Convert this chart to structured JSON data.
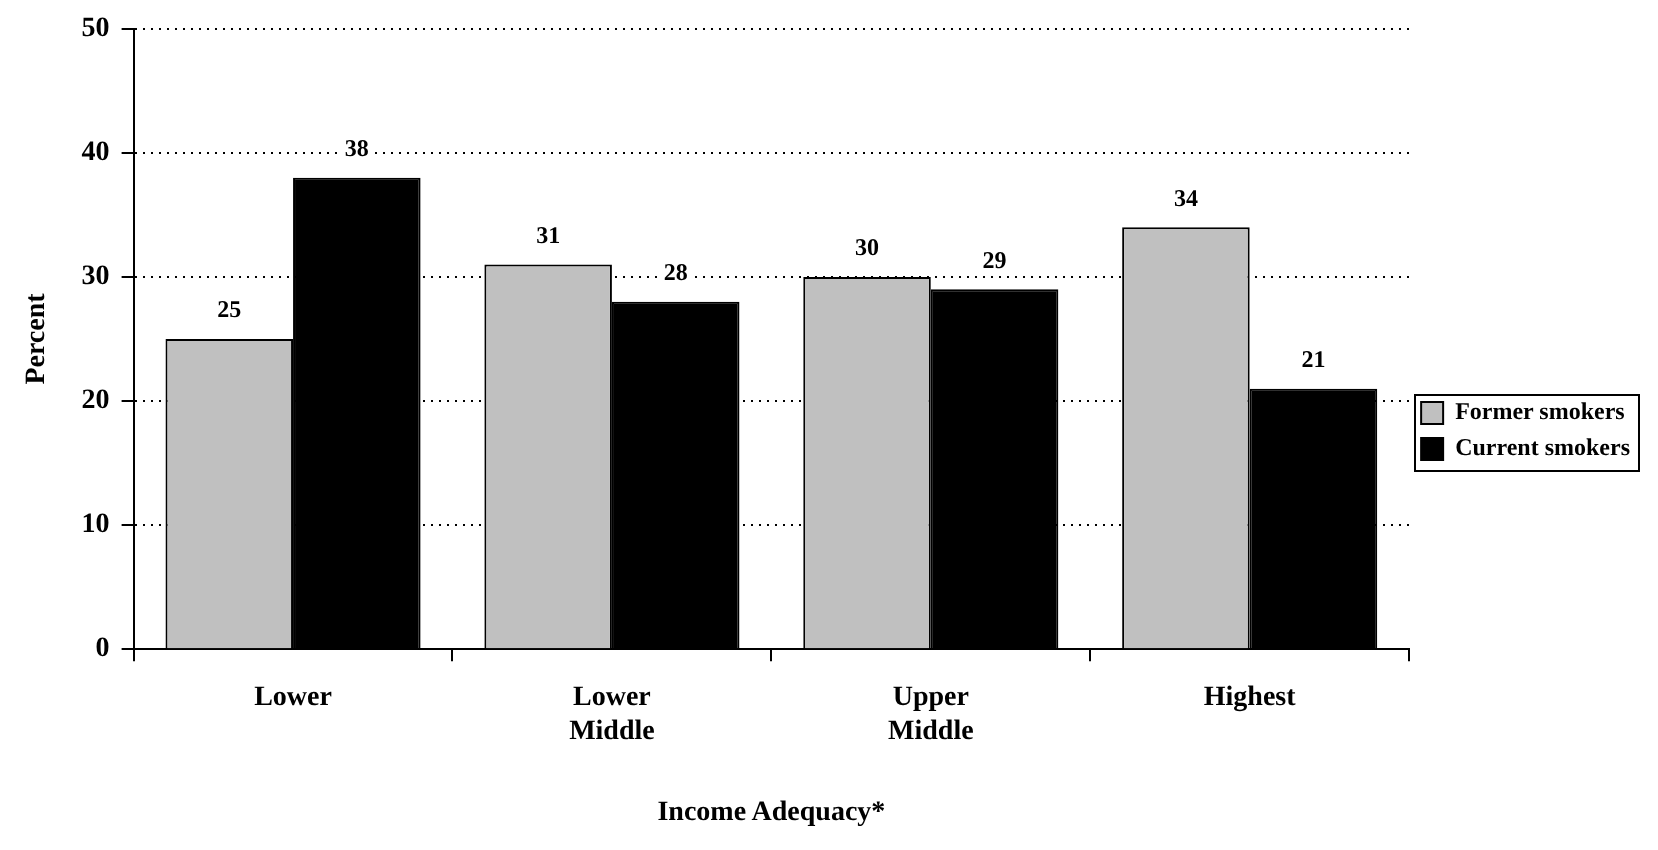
{
  "chart_data": {
    "type": "bar",
    "xlabel": "Income Adequacy*",
    "ylabel": "Percent",
    "categories": [
      "Lower",
      "Lower Middle",
      "Upper Middle",
      "Highest"
    ],
    "series": [
      {
        "name": "Former smokers",
        "color": "#c0c0c0",
        "values": [
          25,
          31,
          30,
          34
        ]
      },
      {
        "name": "Current smokers",
        "color": "#000000",
        "values": [
          38,
          28,
          29,
          21
        ]
      }
    ],
    "ylim": [
      0,
      50
    ],
    "yticks": [
      0,
      10,
      20,
      30,
      40,
      50
    ],
    "grid": "y",
    "legend": "right",
    "data_labels": true
  }
}
